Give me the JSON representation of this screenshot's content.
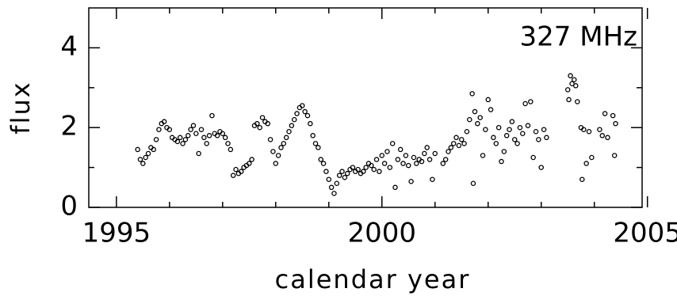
{
  "chart_data": {
    "type": "scatter",
    "annotation": "327 MHz",
    "xlabel": "calendar year",
    "ylabel": "flux",
    "xlim": [
      1994.48,
      2004.9
    ],
    "ylim": [
      0,
      5
    ],
    "xticks": [
      1995,
      2000,
      2005
    ],
    "yticks": [
      0,
      2,
      4
    ],
    "xminor_ticks": [
      1996,
      1997,
      1998,
      1999,
      2001,
      2002,
      2003,
      2004
    ],
    "yminor_ticks": [
      1,
      3
    ],
    "color": "#000000",
    "x": [
      1995.4,
      1995.45,
      1995.5,
      1995.55,
      1995.6,
      1995.65,
      1995.7,
      1995.75,
      1995.8,
      1995.85,
      1995.9,
      1995.95,
      1996.0,
      1996.05,
      1996.1,
      1996.15,
      1996.2,
      1996.25,
      1996.3,
      1996.35,
      1996.4,
      1996.45,
      1996.5,
      1996.55,
      1996.6,
      1996.65,
      1996.7,
      1996.75,
      1996.8,
      1996.85,
      1996.9,
      1996.95,
      1997.0,
      1997.05,
      1997.1,
      1997.15,
      1997.2,
      1997.25,
      1997.3,
      1997.35,
      1997.4,
      1997.45,
      1997.5,
      1997.55,
      1997.6,
      1997.65,
      1997.7,
      1997.75,
      1997.8,
      1997.85,
      1997.9,
      1997.95,
      1998.0,
      1998.05,
      1998.1,
      1998.15,
      1998.2,
      1998.25,
      1998.3,
      1998.35,
      1998.4,
      1998.45,
      1998.5,
      1998.55,
      1998.6,
      1998.65,
      1998.7,
      1998.75,
      1998.8,
      1998.85,
      1998.9,
      1998.95,
      1999.0,
      1999.05,
      1999.1,
      1999.15,
      1999.2,
      1999.25,
      1999.3,
      1999.35,
      1999.4,
      1999.45,
      1999.5,
      1999.55,
      1999.6,
      1999.65,
      1999.7,
      1999.75,
      1999.8,
      1999.85,
      1999.9,
      1999.95,
      2000.0,
      2000.05,
      2000.1,
      2000.15,
      2000.2,
      2000.25,
      2000.3,
      2000.35,
      2000.4,
      2000.45,
      2000.5,
      2000.55,
      2000.6,
      2000.65,
      2000.7,
      2000.75,
      2000.8,
      2000.85,
      2000.9,
      2000.95,
      2001.0,
      2001.15,
      2001.2,
      2001.25,
      2001.3,
      2001.35,
      2001.4,
      2001.45,
      2001.5,
      2001.55,
      2001.6,
      2001.65,
      2001.7,
      2001.72,
      2001.75,
      2001.8,
      2001.85,
      2001.9,
      2001.95,
      2002.0,
      2002.05,
      2002.1,
      2002.15,
      2002.2,
      2002.25,
      2002.3,
      2002.35,
      2002.4,
      2002.45,
      2002.5,
      2002.55,
      2002.6,
      2002.65,
      2002.7,
      2002.75,
      2002.8,
      2002.85,
      2002.9,
      2002.95,
      2003.0,
      2003.05,
      2003.1,
      2003.5,
      2003.52,
      2003.55,
      2003.58,
      2003.62,
      2003.65,
      2003.68,
      2003.75,
      2003.77,
      2003.8,
      2003.85,
      2003.9,
      2003.95,
      2004.1,
      2004.15,
      2004.2,
      2004.25,
      2004.35,
      2004.38,
      2004.4
    ],
    "values": [
      1.45,
      1.2,
      1.1,
      1.25,
      1.35,
      1.5,
      1.45,
      1.7,
      1.95,
      2.1,
      2.15,
      2.0,
      1.95,
      1.75,
      1.7,
      1.65,
      1.75,
      1.6,
      1.7,
      1.8,
      1.95,
      2.05,
      1.85,
      1.35,
      1.95,
      1.75,
      1.6,
      1.8,
      2.3,
      1.85,
      1.8,
      1.9,
      1.85,
      1.75,
      1.6,
      1.45,
      0.8,
      0.95,
      0.85,
      0.9,
      1.0,
      1.05,
      1.1,
      1.2,
      2.05,
      2.1,
      2.0,
      2.25,
      2.15,
      2.1,
      1.7,
      1.4,
      1.1,
      1.3,
      1.5,
      1.6,
      1.75,
      1.9,
      2.05,
      2.2,
      2.35,
      2.5,
      2.55,
      2.4,
      2.3,
      2.1,
      1.8,
      1.6,
      1.5,
      1.2,
      1.1,
      0.9,
      0.7,
      0.5,
      0.35,
      0.6,
      0.8,
      0.9,
      0.75,
      0.85,
      0.95,
      1.0,
      0.9,
      0.95,
      0.85,
      0.9,
      1.0,
      1.1,
      1.05,
      0.95,
      1.2,
      0.9,
      1.3,
      1.1,
      1.4,
      1.0,
      1.6,
      0.5,
      1.2,
      1.45,
      1.1,
      1.3,
      1.05,
      0.65,
      1.25,
      1.1,
      1.2,
      1.15,
      1.35,
      1.5,
      1.2,
      0.7,
      1.35,
      1.1,
      1.2,
      1.4,
      1.5,
      1.6,
      1.75,
      1.55,
      1.7,
      1.6,
      1.9,
      2.2,
      2.85,
      0.6,
      2.4,
      2.1,
      2.25,
      1.3,
      1.95,
      2.7,
      2.45,
      1.75,
      1.6,
      2.0,
      1.15,
      1.4,
      1.8,
      1.95,
      2.15,
      1.7,
      1.6,
      2.0,
      1.85,
      2.6,
      2.05,
      2.65,
      1.25,
      1.9,
      1.7,
      1.0,
      1.95,
      1.75,
      2.95,
      2.7,
      3.3,
      3.1,
      3.2,
      3.05,
      2.65,
      2.0,
      0.7,
      1.95,
      1.1,
      1.9,
      1.25,
      1.95,
      1.8,
      2.35,
      1.75,
      2.3,
      1.3,
      2.1
    ]
  }
}
